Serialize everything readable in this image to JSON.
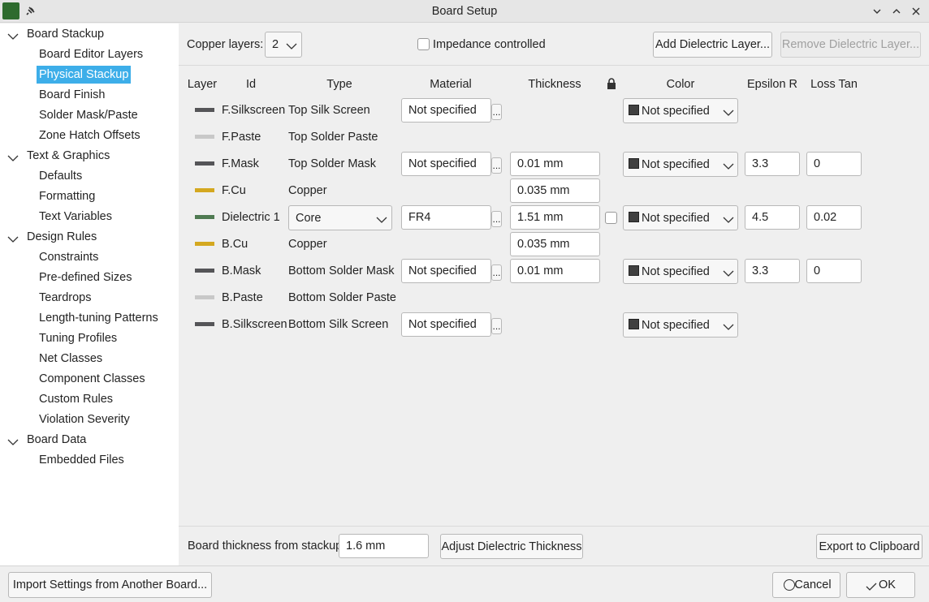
{
  "window": {
    "title": "Board Setup"
  },
  "sidebar": [
    {
      "label": "Board Stackup",
      "items": [
        "Board Editor Layers",
        "Physical Stackup",
        "Board Finish",
        "Solder Mask/Paste",
        "Zone Hatch Offsets"
      ]
    },
    {
      "label": "Text & Graphics",
      "items": [
        "Defaults",
        "Formatting",
        "Text Variables"
      ]
    },
    {
      "label": "Design Rules",
      "items": [
        "Constraints",
        "Pre-defined Sizes",
        "Teardrops",
        "Length-tuning Patterns",
        "Tuning Profiles",
        "Net Classes",
        "Component Classes",
        "Custom Rules",
        "Violation Severity"
      ]
    },
    {
      "label": "Board Data",
      "items": [
        "Embedded Files"
      ]
    }
  ],
  "toolbar": {
    "copper_layers_label": "Copper layers:",
    "copper_layers_value": "2",
    "impedance_label": "Impedance controlled",
    "add_button": "Add Dielectric Layer...",
    "remove_button": "Remove Dielectric Layer..."
  },
  "table": {
    "headers": {
      "layer": "Layer",
      "id": "Id",
      "type": "Type",
      "material": "Material",
      "thickness": "Thickness",
      "color": "Color",
      "epsilon_r": "Epsilon R",
      "loss_tan": "Loss Tan"
    },
    "browse_label": "...",
    "rows": [
      {
        "swatch": "#555558",
        "id": "F.Silkscreen",
        "type": "Top Silk Screen",
        "material": "Not specified",
        "color": "Not specified"
      },
      {
        "swatch": "#c8c8c8",
        "id": "F.Paste",
        "type": "Top Solder Paste"
      },
      {
        "swatch": "#555558",
        "id": "F.Mask",
        "type": "Top Solder Mask",
        "material": "Not specified",
        "thickness": "0.01 mm",
        "color": "Not specified",
        "epsilon_r": "3.3",
        "loss_tan": "0"
      },
      {
        "swatch": "#d4a820",
        "id": "F.Cu",
        "type": "Copper",
        "thickness": "0.035 mm"
      },
      {
        "swatch": "#4f7a52",
        "id": "Dielectric 1",
        "type": "Core",
        "type_dropdown": true,
        "material": "FR4",
        "thickness": "1.51 mm",
        "lock": false,
        "color": "Not specified",
        "epsilon_r": "4.5",
        "loss_tan": "0.02"
      },
      {
        "swatch": "#d4a820",
        "id": "B.Cu",
        "type": "Copper",
        "thickness": "0.035 mm"
      },
      {
        "swatch": "#555558",
        "id": "B.Mask",
        "type": "Bottom Solder Mask",
        "material": "Not specified",
        "thickness": "0.01 mm",
        "color": "Not specified",
        "epsilon_r": "3.3",
        "loss_tan": "0"
      },
      {
        "swatch": "#c8c8c8",
        "id": "B.Paste",
        "type": "Bottom Solder Paste"
      },
      {
        "swatch": "#555558",
        "id": "B.Silkscreen",
        "type": "Bottom Silk Screen",
        "material": "Not specified",
        "color": "Not specified"
      }
    ]
  },
  "footer": {
    "thickness_label": "Board thickness from stackup:",
    "thickness_value": "1.6 mm",
    "adjust_button": "Adjust Dielectric Thickness",
    "export_button": "Export to Clipboard"
  },
  "buttons": {
    "import": "Import Settings from Another Board...",
    "cancel": "Cancel",
    "ok": "OK"
  }
}
